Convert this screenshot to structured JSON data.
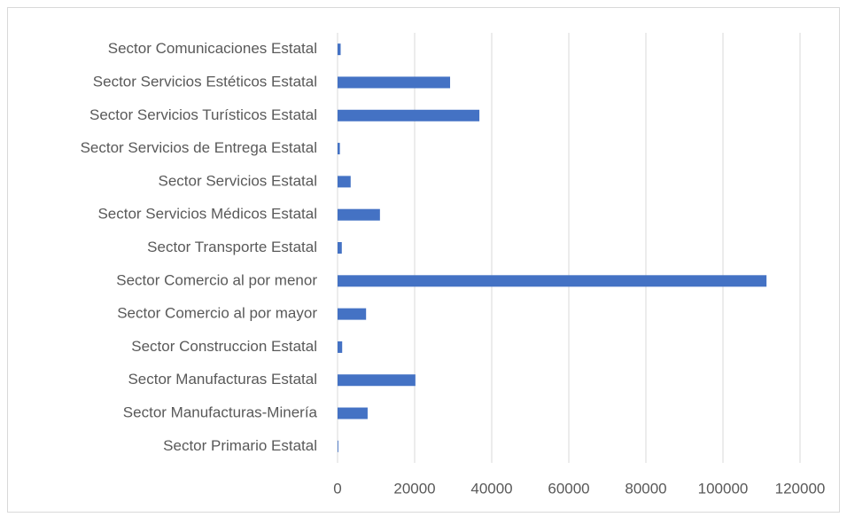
{
  "chart_data": {
    "type": "bar",
    "orientation": "horizontal",
    "categories": [
      "Sector Comunicaciones Estatal",
      "Sector Servicios Estéticos Estatal",
      "Sector Servicios Turísticos Estatal",
      "Sector Servicios de Entrega Estatal",
      "Sector Servicios Estatal",
      "Sector Servicios Médicos Estatal",
      "Sector Transporte Estatal",
      "Sector Comercio al por menor",
      "Sector Comercio al por mayor",
      "Sector Construccion Estatal",
      "Sector Manufacturas Estatal",
      "Sector Manufacturas-Minería",
      "Sector Primario Estatal"
    ],
    "values": [
      800,
      29200,
      36800,
      600,
      3400,
      11000,
      1100,
      111300,
      7400,
      1200,
      20200,
      7800,
      200
    ],
    "color": "#4472c4",
    "xlim": [
      0,
      120000
    ],
    "xticks": [
      0,
      20000,
      40000,
      60000,
      80000,
      100000,
      120000
    ],
    "grid": true
  }
}
